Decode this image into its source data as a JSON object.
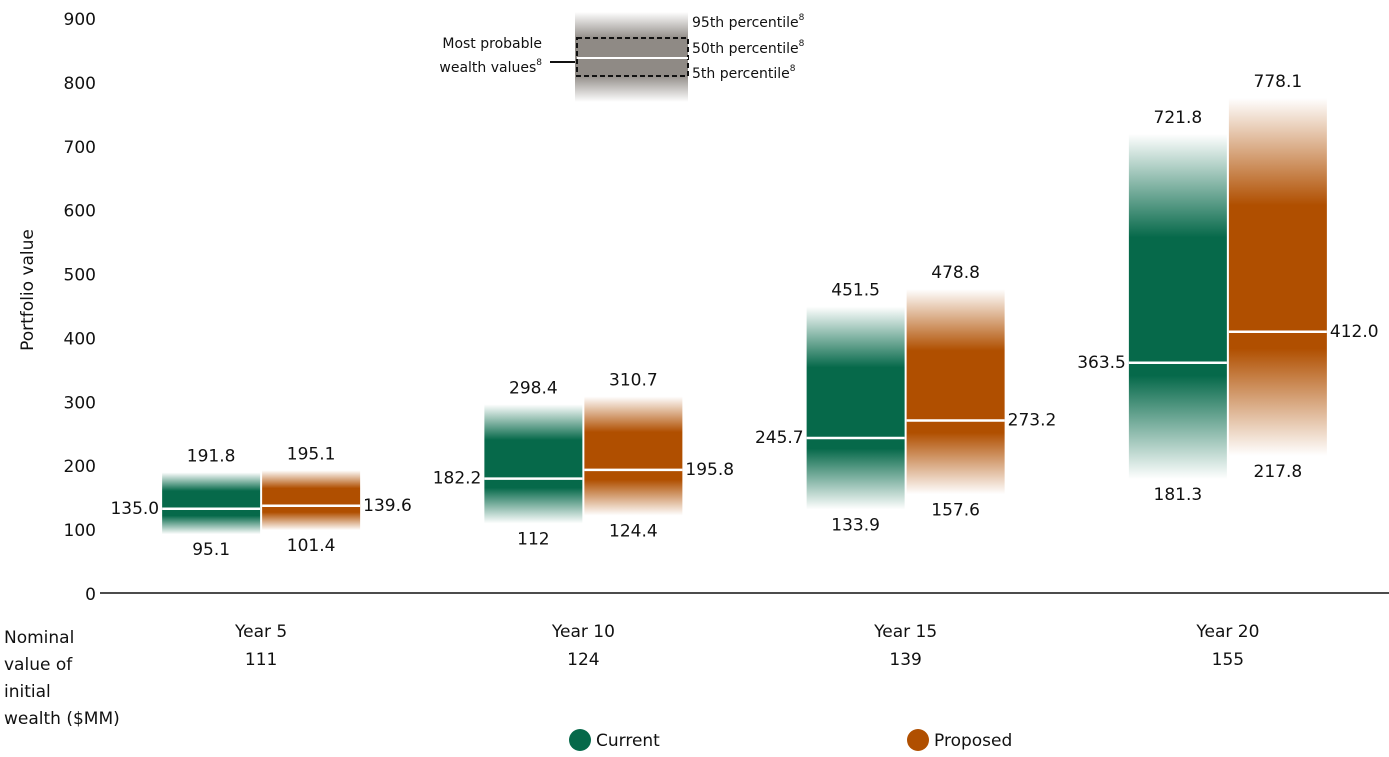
{
  "chart_data": {
    "type": "percentile_range",
    "y_label": "Portfolio value",
    "categories": [
      "Year 5",
      "Year 10",
      "Year 15",
      "Year 20"
    ],
    "nominal_values": [
      111,
      124,
      139,
      155
    ],
    "x_row_label": [
      "Nominal",
      "value of",
      "initial",
      "wealth ($MM)"
    ],
    "ylim": [
      0,
      900
    ],
    "yticks": [
      0,
      100,
      200,
      300,
      400,
      500,
      600,
      700,
      800,
      900
    ],
    "series": [
      {
        "name": "Current",
        "color": "#06694a",
        "values": [
          135.0,
          182.2,
          245.7,
          363.5
        ],
        "value_labels": [
          "135.0",
          "182.2",
          "245.7",
          "363.5"
        ],
        "high": [
          191.8,
          298.4,
          451.5,
          721.8
        ],
        "low": [
          95.1,
          112,
          133.9,
          181.3
        ]
      },
      {
        "name": "Proposed",
        "color": "#b04f00",
        "values": [
          139.6,
          195.8,
          273.2,
          412.0
        ],
        "value_labels": [
          "139.6",
          "195.8",
          "273.2",
          "412.0"
        ],
        "high": [
          195.1,
          310.7,
          478.8,
          778.1
        ],
        "low": [
          101.4,
          124.4,
          157.6,
          217.8
        ]
      }
    ],
    "key": {
      "range_label": [
        "Most probable",
        "wealth values"
      ],
      "high_label": "95th percentile",
      "mid_label": "50th percentile",
      "low_label": "5th percentile",
      "footnote": "8"
    }
  }
}
